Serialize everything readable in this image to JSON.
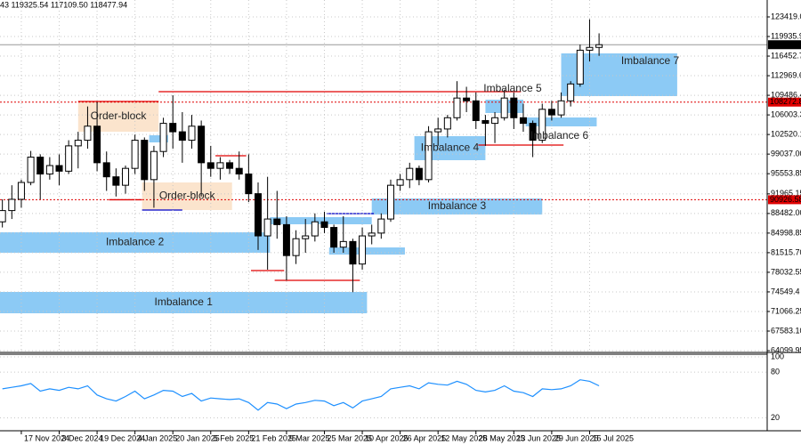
{
  "chart_data": [
    {
      "type": "candlestick",
      "header": "43 119325.54 117109.50 118477.94",
      "x": [
        "9 Nov 2024",
        "13 Nov 2024",
        "17 Nov 2024",
        "21 Nov 2024",
        "25 Nov 2024",
        "29 Nov 2024",
        "3 Dec 2024",
        "7 Dec 2024",
        "11 Dec 2024",
        "15 Dec 2024",
        "19 Dec 2024",
        "23 Dec 2024",
        "27 Dec 2024",
        "31 Dec 2024",
        "4 Jan 2025",
        "8 Jan 2025",
        "12 Jan 2025",
        "16 Jan 2025",
        "20 Jan 2025",
        "24 Jan 2025",
        "28 Jan 2025",
        "1 Feb 2025",
        "5 Feb 2025",
        "9 Feb 2025",
        "13 Feb 2025",
        "17 Feb 2025",
        "21 Feb 2025",
        "25 Feb 2025",
        "1 Mar 2025",
        "5 Mar 2025",
        "9 Mar 2025",
        "13 Mar 2025",
        "17 Mar 2025",
        "21 Mar 2025",
        "25 Mar 2025",
        "29 Mar 2025",
        "2 Apr 2025",
        "6 Apr 2025",
        "10 Apr 2025",
        "14 Apr 2025",
        "18 Apr 2025",
        "22 Apr 2025",
        "26 Apr 2025",
        "30 Apr 2025",
        "4 May 2025",
        "8 May 2025",
        "12 May 2025",
        "16 May 2025",
        "20 May 2025",
        "24 May 2025",
        "28 May 2025",
        "1 Jun 2025",
        "5 Jun 2025",
        "9 Jun 2025",
        "13 Jun 2025",
        "17 Jun 2025",
        "21 Jun 2025",
        "25 Jun 2025",
        "29 Jun 2025",
        "3 Jul 2025",
        "7 Jul 2025",
        "11 Jul 2025",
        "15 Jul 2025",
        "19 Jul 2025"
      ],
      "open": [
        87000,
        89000,
        91000,
        94000,
        98500,
        95500,
        97000,
        96000,
        100500,
        101500,
        104000,
        97500,
        95000,
        93500,
        96500,
        101500,
        94500,
        99500,
        104500,
        103000,
        101500,
        104000,
        97500,
        96500,
        97500,
        96500,
        95500,
        92000,
        84500,
        87500,
        86500,
        81000,
        84000,
        84500,
        87000,
        86000,
        82500,
        83500,
        79500,
        84500,
        85000,
        87500,
        93500,
        94500,
        96500,
        94500,
        103000,
        103500,
        105500,
        109000,
        108500,
        105000,
        104500,
        105500,
        109000,
        105500,
        104500,
        101500,
        107000,
        106000,
        108500,
        111500,
        117500,
        118000
      ],
      "high": [
        91000,
        93500,
        94500,
        99600,
        99000,
        98500,
        99000,
        101500,
        103000,
        107500,
        108300,
        99500,
        96500,
        97000,
        102500,
        102000,
        100500,
        105500,
        109500,
        106500,
        106000,
        105000,
        100500,
        98500,
        98000,
        99500,
        99000,
        94000,
        95000,
        92500,
        88000,
        85500,
        87500,
        88500,
        88800,
        86500,
        88000,
        84000,
        86000,
        86500,
        88500,
        94500,
        95500,
        97500,
        97000,
        104000,
        105500,
        106000,
        112000,
        111000,
        110000,
        106000,
        106500,
        110500,
        110000,
        108000,
        105000,
        108000,
        108500,
        110000,
        112000,
        118500,
        123000,
        120500
      ],
      "low": [
        86000,
        87500,
        89500,
        93500,
        91000,
        94500,
        93500,
        95500,
        96500,
        100000,
        96000,
        92500,
        91500,
        92000,
        95500,
        92500,
        89500,
        98500,
        100000,
        97500,
        100000,
        91500,
        95000,
        94500,
        95500,
        94500,
        90500,
        82000,
        78500,
        84000,
        76600,
        79500,
        81500,
        83500,
        85000,
        81500,
        81500,
        74500,
        78500,
        83000,
        84000,
        87000,
        92500,
        93000,
        93500,
        94000,
        100500,
        102000,
        105000,
        106500,
        103500,
        100500,
        101000,
        105000,
        103500,
        103000,
        98500,
        101000,
        105000,
        105500,
        107500,
        111000,
        115500,
        116500
      ],
      "close": [
        89000,
        91000,
        94000,
        98500,
        95500,
        97000,
        96000,
        100500,
        101500,
        104000,
        97500,
        95000,
        93500,
        96500,
        101500,
        94500,
        99500,
        104500,
        103000,
        101500,
        104000,
        97500,
        96500,
        97500,
        96500,
        95500,
        92000,
        84500,
        87500,
        86500,
        81000,
        84000,
        84500,
        87000,
        86000,
        82500,
        83500,
        79500,
        84500,
        85000,
        87500,
        93500,
        94500,
        96500,
        94500,
        103000,
        103500,
        105500,
        109000,
        108500,
        105000,
        104500,
        105500,
        109000,
        105500,
        104500,
        101500,
        107000,
        106000,
        108500,
        111500,
        117500,
        118000,
        118477.94
      ],
      "up_color": "#ffffff",
      "down_color": "#000000",
      "wick_color": "#000000",
      "xlim": [
        "8 Nov 2024",
        "28 Sep 2025"
      ],
      "xticks": [
        "17 Nov 2024",
        "3 Dec 2024",
        "19 Dec 2024",
        "4 Jan 2025",
        "20 Jan 2025",
        "5 Feb 2025",
        "21 Feb 2025",
        "9 Mar 2025",
        "25 Mar 2025",
        "10 Apr 2025",
        "26 Apr 2025",
        "12 May 2025",
        "28 May 2025",
        "13 Jun 2025",
        "29 Jun 2025",
        "15 Jul 2025"
      ],
      "ylim": [
        63786,
        126424
      ],
      "yticks": [
        123419.05,
        {
          "value": 119935.9,
          "label": "119935.90"
        },
        116452.75,
        {
          "value": 112969.6,
          "label": "112969.60"
        },
        109486.45,
        106003.3,
        102520.15,
        {
          "value": 99037,
          "label": "99037.00"
        },
        95553.85,
        91965.15,
        {
          "value": 88482,
          "label": "88482.00"
        },
        84998.85,
        {
          "value": 81515.7,
          "label": "81515.70"
        },
        78032.55,
        74549.4,
        71066.25,
        {
          "value": 67583.1,
          "label": "67583.10"
        },
        64099.95
      ],
      "grid": true,
      "zones": [
        {
          "label": "Imbalance 1",
          "from": "8 Nov 2024",
          "to": "12 Apr 2025",
          "low": 70746,
          "high": 74542,
          "color": "#8ccaf5"
        },
        {
          "label": "Imbalance 2",
          "from": "8 Nov 2024",
          "to": "2 Mar 2025",
          "low": 81502,
          "high": 85140,
          "color": "#8ccaf5"
        },
        {
          "label": "Imbalance 3",
          "from": "14 Apr 2025",
          "to": "25 Jun 2025",
          "low": 88303,
          "high": 91151,
          "color": "#8ccaf5"
        },
        {
          "label": "Imbalance 4",
          "from": "2 May 2025",
          "to": "1 Jun 2025",
          "low": 97952,
          "high": 102223,
          "color": "#8ccaf5"
        },
        {
          "label": "Imbalance 5",
          "from": "1 Jun 2025",
          "to": "17 Jun 2025",
          "low": 106336,
          "high": 108708,
          "color": "#8ccaf5"
        },
        {
          "label": "Imbalance 6",
          "from": "18 Jun 2025",
          "to": "18 Jul 2025",
          "low": 103965,
          "high": 105546,
          "color": "#8ccaf5"
        },
        {
          "label": "Imbalance 7",
          "from": "3 Jul 2025",
          "to": "21 Aug 2025",
          "low": 109342,
          "high": 116934,
          "color": "#8ccaf5"
        },
        {
          "label": "Order-block",
          "from": "11 Dec 2024",
          "to": "14 Jan 2025",
          "low": 103014,
          "high": 108392,
          "color": "#fbe4cd"
        },
        {
          "label": "Order-block",
          "from": "7 Jan 2025",
          "to": "14 Feb 2025",
          "low": 89095,
          "high": 94000,
          "color": "#fbe4cd"
        },
        {
          "from": "10 Jan 2025",
          "to": "18 Jan 2025",
          "low": 101116,
          "high": 102381,
          "color": "#8ccaf5"
        },
        {
          "from": "2 Mar 2025",
          "to": "14 Apr 2025",
          "low": 86563,
          "high": 87829,
          "color": "#8ccaf5"
        },
        {
          "from": "27 Mar 2025",
          "to": "28 Apr 2025",
          "low": 81182,
          "high": 82448,
          "color": "#8ccaf5"
        }
      ],
      "levels": [
        {
          "price": 110132,
          "from": "14 Jan 2025",
          "to": "16 Jun 2025",
          "color": "#e00000"
        },
        {
          "price": 108392,
          "from": "11 Dec 2024",
          "to": "14 Jan 2025",
          "color": "#e00000"
        },
        {
          "price": 90926,
          "from": "24 Dec 2024",
          "to": "7 Jan 2025",
          "color": "#e00000"
        },
        {
          "price": 98743,
          "from": "7 Feb 2025",
          "to": "20 Feb 2025",
          "color": "#e00000"
        },
        {
          "price": 78340,
          "from": "22 Feb 2025",
          "to": "8 Mar 2025",
          "color": "#e00000"
        },
        {
          "price": 76600,
          "from": "4 Mar 2025",
          "to": "9 Apr 2025",
          "color": "#e00000"
        },
        {
          "price": 100641,
          "from": "29 May 2025",
          "to": "4 Jul 2025",
          "color": "#e00000"
        },
        {
          "price": 89095,
          "from": "7 Jan 2025",
          "to": "24 Jan 2025",
          "color": "#0000c8"
        },
        {
          "price": 88462,
          "from": "26 Mar 2025",
          "to": "15 Apr 2025",
          "color": "#0000c8"
        }
      ],
      "price_lines": [
        {
          "value": 108272.88,
          "color": "#e00000"
        },
        {
          "value": 90926.58,
          "color": "#e00000"
        }
      ],
      "last_price": 118477.94
    },
    {
      "type": "line",
      "values": [
        58,
        60,
        62,
        65,
        55,
        58,
        56,
        60,
        58,
        62,
        50,
        45,
        42,
        48,
        55,
        45,
        50,
        56,
        55,
        48,
        52,
        42,
        46,
        45,
        44,
        45,
        40,
        30,
        40,
        38,
        32,
        38,
        40,
        43,
        42,
        36,
        40,
        33,
        42,
        45,
        48,
        58,
        60,
        62,
        58,
        66,
        64,
        63,
        68,
        64,
        56,
        54,
        56,
        62,
        55,
        53,
        48,
        58,
        57,
        58,
        62,
        70,
        68,
        62
      ],
      "color": "#1e90ff",
      "ylim": [
        3,
        103.5
      ],
      "yticks": [
        100,
        80,
        20
      ]
    }
  ]
}
